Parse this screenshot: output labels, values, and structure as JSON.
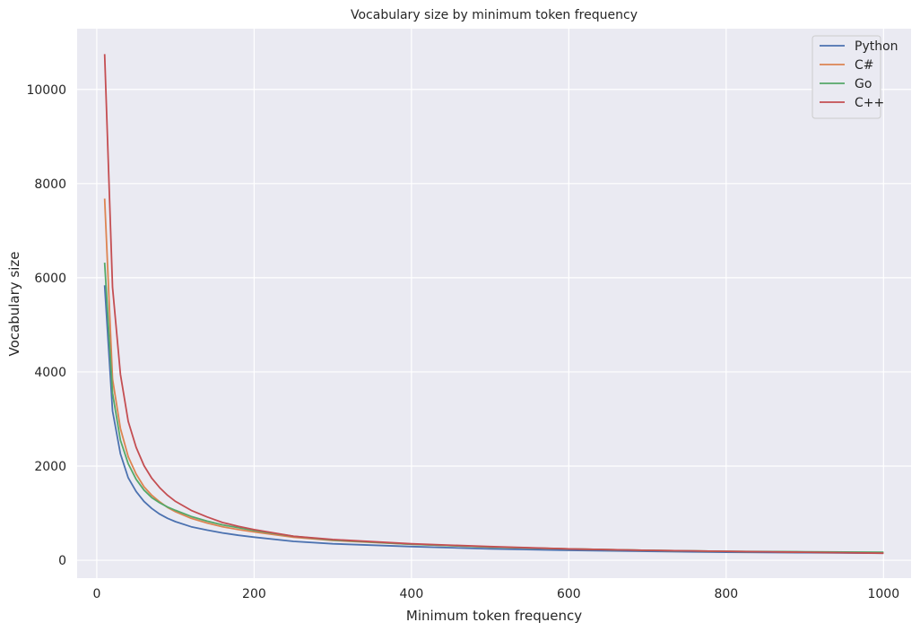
{
  "chart_data": {
    "type": "line",
    "title": "Vocabulary size by minimum token frequency",
    "xlabel": "Minimum token frequency",
    "ylabel": "Vocabulary size",
    "xlim": [
      -25,
      1035
    ],
    "ylim": [
      -380,
      11290
    ],
    "xticks": [
      0,
      200,
      400,
      600,
      800,
      1000
    ],
    "yticks": [
      0,
      2000,
      4000,
      6000,
      8000,
      10000
    ],
    "grid": true,
    "legend_position": "top-right",
    "colors": {
      "background": "#eaeaf2",
      "grid": "#ffffff",
      "text": "#262626"
    },
    "x": [
      10,
      20,
      30,
      40,
      50,
      60,
      70,
      80,
      90,
      100,
      120,
      140,
      160,
      180,
      200,
      250,
      300,
      400,
      500,
      600,
      700,
      800,
      900,
      1000
    ],
    "series": [
      {
        "name": "Python",
        "color": "#4c72b0",
        "values": [
          5840,
          3170,
          2260,
          1750,
          1460,
          1250,
          1100,
          980,
          890,
          820,
          710,
          640,
          580,
          530,
          490,
          400,
          350,
          290,
          240,
          210,
          190,
          170,
          160,
          150
        ]
      },
      {
        "name": "C#",
        "color": "#dd8452",
        "values": [
          7680,
          3850,
          2800,
          2200,
          1830,
          1560,
          1380,
          1240,
          1120,
          1030,
          890,
          790,
          710,
          650,
          600,
          490,
          420,
          340,
          280,
          240,
          210,
          190,
          170,
          160
        ]
      },
      {
        "name": "Go",
        "color": "#55a868",
        "values": [
          6320,
          3550,
          2550,
          2050,
          1720,
          1490,
          1330,
          1220,
          1130,
          1060,
          930,
          830,
          750,
          690,
          630,
          510,
          430,
          340,
          280,
          240,
          210,
          190,
          180,
          170
        ]
      },
      {
        "name": "C++",
        "color": "#c44e52",
        "values": [
          10750,
          5800,
          3950,
          2950,
          2400,
          2010,
          1740,
          1540,
          1380,
          1250,
          1060,
          920,
          800,
          720,
          650,
          510,
          440,
          350,
          290,
          240,
          210,
          190,
          170,
          150
        ]
      }
    ]
  }
}
